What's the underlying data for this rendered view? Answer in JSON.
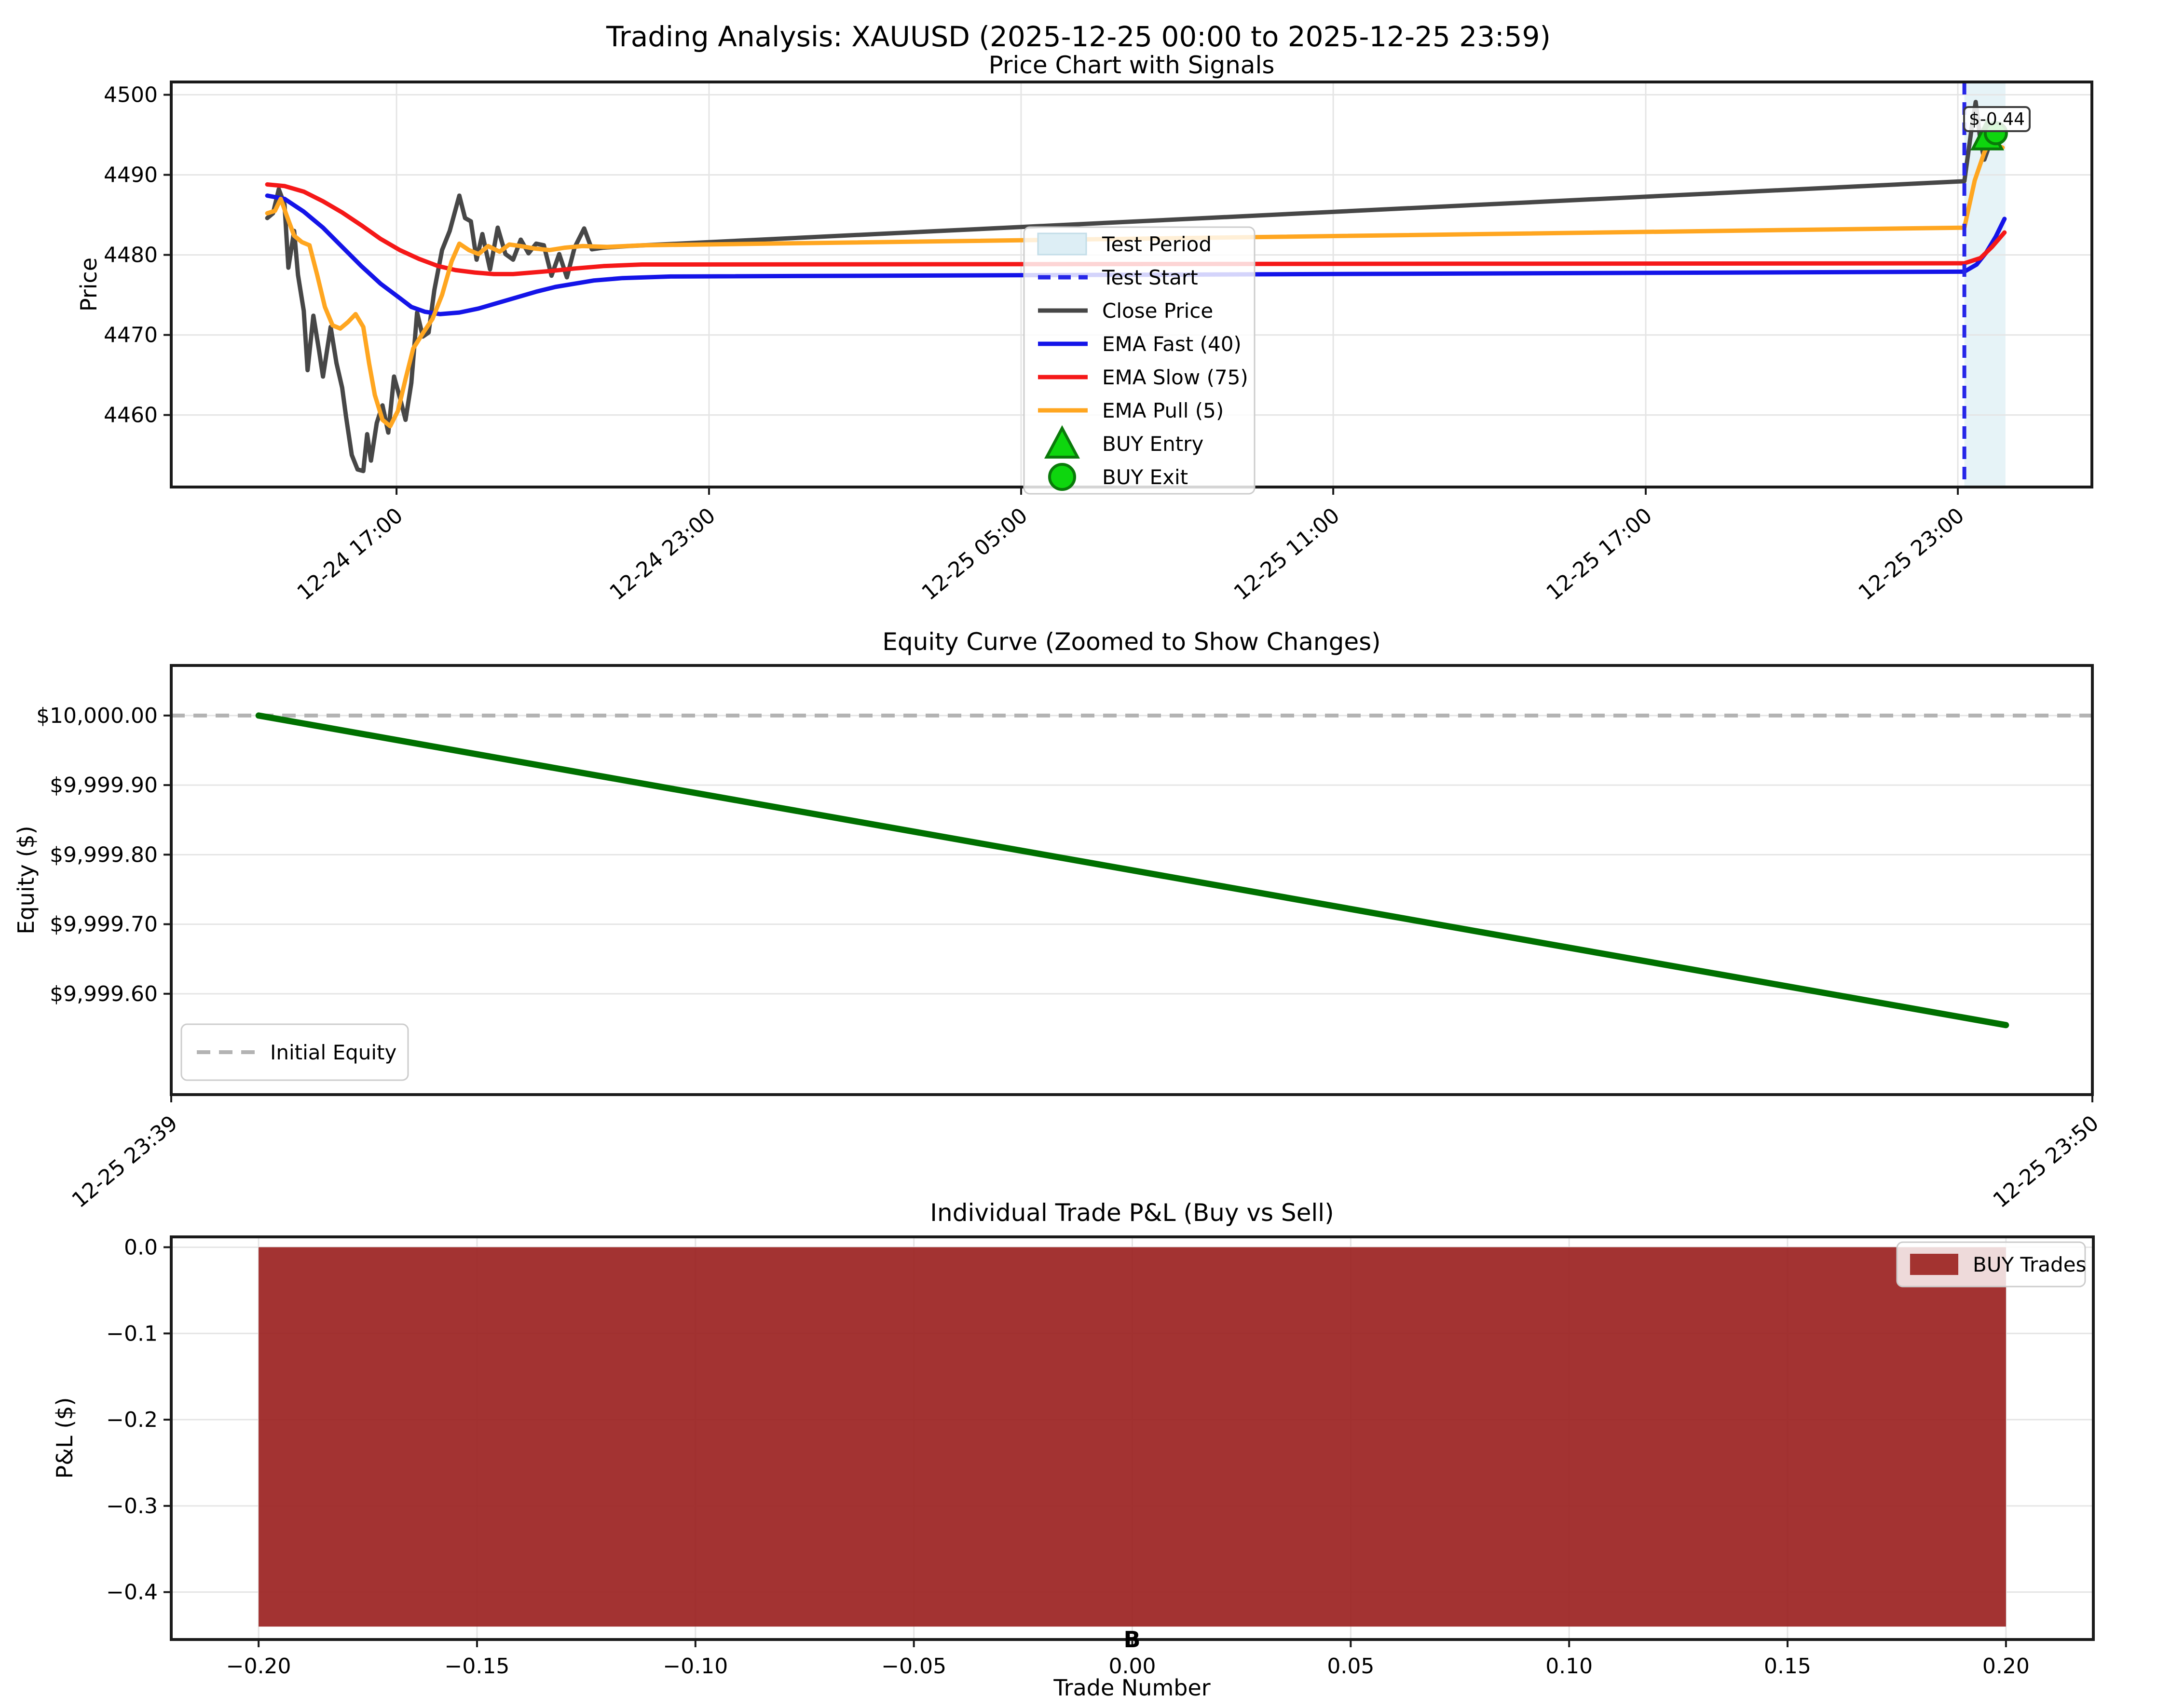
{
  "figure_title": "Trading Analysis: XAUUSD (2025-12-25 00:00 to 2025-12-25 23:59)",
  "chart_data": [
    {
      "id": "price",
      "type": "line",
      "title": "Price Chart with Signals",
      "ylabel": "Price",
      "xlim": [
        0,
        100
      ],
      "ylim": [
        4451.0,
        4501.6
      ],
      "grid": true,
      "yticks": [
        {
          "v": 4460,
          "label": "4460"
        },
        {
          "v": 4470,
          "label": "4470"
        },
        {
          "v": 4480,
          "label": "4480"
        },
        {
          "v": 4490,
          "label": "4490"
        },
        {
          "v": 4500,
          "label": "4500"
        }
      ],
      "xticks": [
        {
          "v": 11.73,
          "label": "12-24 17:00"
        },
        {
          "v": 28.0,
          "label": "12-24 23:00"
        },
        {
          "v": 44.25,
          "label": "12-25 05:00"
        },
        {
          "v": 60.5,
          "label": "12-25 11:00"
        },
        {
          "v": 76.77,
          "label": "12-25 17:00"
        },
        {
          "v": 93.02,
          "label": "12-25 23:00"
        }
      ],
      "test_period": {
        "label": "Test Period",
        "x0": 93.36,
        "x1": 95.5,
        "color": "rgba(173,216,230,0.30)"
      },
      "test_start": {
        "label": "Test Start",
        "x": 93.36,
        "color": "#2626e8"
      },
      "series": [
        {
          "name": "Close Price",
          "color": "#474747",
          "width": 9,
          "points": [
            [
              5.0,
              4484.6
            ],
            [
              5.3,
              4485.2
            ],
            [
              5.6,
              4488.2
            ],
            [
              5.9,
              4486.3
            ],
            [
              6.1,
              4478.4
            ],
            [
              6.4,
              4483.0
            ],
            [
              6.6,
              4477.5
            ],
            [
              6.9,
              4473.0
            ],
            [
              7.1,
              4465.6
            ],
            [
              7.4,
              4472.4
            ],
            [
              7.7,
              4468.0
            ],
            [
              7.9,
              4464.8
            ],
            [
              8.3,
              4471.0
            ],
            [
              8.6,
              4466.5
            ],
            [
              8.9,
              4463.4
            ],
            [
              9.1,
              4459.8
            ],
            [
              9.4,
              4455.0
            ],
            [
              9.7,
              4453.2
            ],
            [
              10.0,
              4453.0
            ],
            [
              10.2,
              4457.6
            ],
            [
              10.4,
              4454.3
            ],
            [
              10.7,
              4459.0
            ],
            [
              11.0,
              4461.2
            ],
            [
              11.3,
              4457.8
            ],
            [
              11.6,
              4464.8
            ],
            [
              11.9,
              4462.2
            ],
            [
              12.2,
              4459.4
            ],
            [
              12.5,
              4464.0
            ],
            [
              12.8,
              4472.8
            ],
            [
              13.1,
              4469.8
            ],
            [
              13.4,
              4470.3
            ],
            [
              13.7,
              4475.6
            ],
            [
              14.1,
              4480.6
            ],
            [
              14.5,
              4483.0
            ],
            [
              15.0,
              4487.4
            ],
            [
              15.3,
              4484.6
            ],
            [
              15.6,
              4484.2
            ],
            [
              15.9,
              4479.4
            ],
            [
              16.2,
              4482.6
            ],
            [
              16.6,
              4478.2
            ],
            [
              17.0,
              4483.4
            ],
            [
              17.4,
              4480.1
            ],
            [
              17.8,
              4479.4
            ],
            [
              18.2,
              4481.9
            ],
            [
              18.6,
              4480.2
            ],
            [
              19.0,
              4481.4
            ],
            [
              19.4,
              4481.2
            ],
            [
              19.8,
              4477.4
            ],
            [
              20.2,
              4480.1
            ],
            [
              20.6,
              4477.2
            ],
            [
              21.0,
              4480.9
            ],
            [
              21.5,
              4483.3
            ],
            [
              21.9,
              4480.7
            ],
            [
              22.5,
              4480.9
            ],
            [
              23.1,
              4481.0
            ],
            [
              23.8,
              4481.1
            ],
            [
              93.36,
              4489.2
            ],
            [
              93.75,
              4496.0
            ],
            [
              93.95,
              4499.1
            ],
            [
              94.2,
              4494.2
            ],
            [
              94.4,
              4491.9
            ],
            [
              94.65,
              4493.6
            ],
            [
              95.0,
              4495.2
            ]
          ]
        },
        {
          "name": "EMA Fast (40)",
          "color": "#1414e8",
          "width": 9,
          "points": [
            [
              5.0,
              4487.4
            ],
            [
              5.9,
              4487.0
            ],
            [
              6.9,
              4485.4
            ],
            [
              7.9,
              4483.4
            ],
            [
              8.9,
              4481.0
            ],
            [
              9.9,
              4478.6
            ],
            [
              10.9,
              4476.4
            ],
            [
              11.9,
              4474.6
            ],
            [
              12.5,
              4473.5
            ],
            [
              13.2,
              4472.9
            ],
            [
              14.0,
              4472.6
            ],
            [
              15.0,
              4472.8
            ],
            [
              16.0,
              4473.3
            ],
            [
              17.0,
              4474.0
            ],
            [
              18.0,
              4474.7
            ],
            [
              19.0,
              4475.4
            ],
            [
              20.0,
              4476.0
            ],
            [
              21.0,
              4476.4
            ],
            [
              22.0,
              4476.8
            ],
            [
              23.5,
              4477.1
            ],
            [
              26.0,
              4477.3
            ],
            [
              93.36,
              4477.9
            ],
            [
              94.0,
              4478.8
            ],
            [
              94.5,
              4480.3
            ],
            [
              95.0,
              4482.3
            ],
            [
              95.45,
              4484.5
            ]
          ]
        },
        {
          "name": "EMA Slow (75)",
          "color": "#f51818",
          "width": 9,
          "points": [
            [
              5.0,
              4488.8
            ],
            [
              5.9,
              4488.6
            ],
            [
              6.9,
              4487.9
            ],
            [
              7.9,
              4486.7
            ],
            [
              8.9,
              4485.3
            ],
            [
              9.9,
              4483.7
            ],
            [
              10.9,
              4482.0
            ],
            [
              11.9,
              4480.6
            ],
            [
              12.9,
              4479.5
            ],
            [
              13.9,
              4478.6
            ],
            [
              14.8,
              4478.1
            ],
            [
              15.8,
              4477.8
            ],
            [
              16.8,
              4477.6
            ],
            [
              17.8,
              4477.6
            ],
            [
              18.8,
              4477.8
            ],
            [
              19.8,
              4478.0
            ],
            [
              21.0,
              4478.3
            ],
            [
              22.5,
              4478.6
            ],
            [
              24.5,
              4478.8
            ],
            [
              93.36,
              4478.95
            ],
            [
              94.2,
              4479.6
            ],
            [
              94.8,
              4481.0
            ],
            [
              95.45,
              4482.8
            ]
          ]
        },
        {
          "name": "EMA Pull (5)",
          "color": "#ffa620",
          "width": 9,
          "points": [
            [
              5.0,
              4485.2
            ],
            [
              5.4,
              4485.5
            ],
            [
              5.7,
              4487.0
            ],
            [
              6.0,
              4485.0
            ],
            [
              6.4,
              4482.4
            ],
            [
              6.8,
              4481.6
            ],
            [
              7.2,
              4481.2
            ],
            [
              7.6,
              4477.5
            ],
            [
              8.0,
              4473.5
            ],
            [
              8.4,
              4471.2
            ],
            [
              8.8,
              4470.8
            ],
            [
              9.2,
              4471.6
            ],
            [
              9.6,
              4472.6
            ],
            [
              10.0,
              4471.0
            ],
            [
              10.3,
              4466.5
            ],
            [
              10.6,
              4462.5
            ],
            [
              11.0,
              4459.4
            ],
            [
              11.4,
              4458.6
            ],
            [
              11.8,
              4460.5
            ],
            [
              12.2,
              4464.5
            ],
            [
              12.6,
              4468.3
            ],
            [
              13.1,
              4470.2
            ],
            [
              13.6,
              4472.0
            ],
            [
              14.1,
              4475.0
            ],
            [
              14.6,
              4479.2
            ],
            [
              15.0,
              4481.4
            ],
            [
              15.5,
              4480.6
            ],
            [
              16.0,
              4480.1
            ],
            [
              16.5,
              4481.1
            ],
            [
              17.1,
              4480.4
            ],
            [
              17.6,
              4481.3
            ],
            [
              18.2,
              4481.1
            ],
            [
              18.9,
              4480.8
            ],
            [
              19.7,
              4480.6
            ],
            [
              20.5,
              4480.9
            ],
            [
              21.4,
              4481.1
            ],
            [
              22.7,
              4481.0
            ],
            [
              24.5,
              4481.2
            ],
            [
              93.36,
              4483.4
            ],
            [
              93.9,
              4489.3
            ],
            [
              94.4,
              4492.8
            ],
            [
              94.7,
              4494.3
            ],
            [
              94.9,
              4493.8
            ],
            [
              95.35,
              4493.4
            ]
          ]
        }
      ],
      "markers": [
        {
          "name": "BUY Entry",
          "shape": "triangle",
          "x": 94.55,
          "v": 4494.8,
          "fill": "#0ed60e",
          "edge": "#0a7a0a"
        },
        {
          "name": "BUY Exit",
          "shape": "circle",
          "x": 95.0,
          "v": 4495.2,
          "fill": "#0ed60e",
          "edge": "#0a7a0a"
        }
      ],
      "annotation": {
        "text": "$-0.44",
        "x": 94.35,
        "v": 4497.5
      },
      "legend": [
        "Test Period",
        "Test Start",
        "Close Price",
        "EMA Fast (40)",
        "EMA Slow (75)",
        "EMA Pull (5)",
        "BUY Entry",
        "BUY Exit"
      ]
    },
    {
      "id": "equity",
      "type": "line",
      "title": "Equity Curve (Zoomed to Show Changes)",
      "ylabel": "Equity ($)",
      "xlim": [
        0,
        100
      ],
      "ylim": [
        9999.455,
        10000.072
      ],
      "grid": true,
      "yticks": [
        {
          "v": 10000.0,
          "label": "$10,000.00"
        },
        {
          "v": 9999.9,
          "label": "$9,999.90"
        },
        {
          "v": 9999.8,
          "label": "$9,999.80"
        },
        {
          "v": 9999.7,
          "label": "$9,999.70"
        },
        {
          "v": 9999.6,
          "label": "$9,999.60"
        }
      ],
      "xticks": [
        {
          "v": 0,
          "label": "12-25 23:39"
        },
        {
          "v": 100,
          "label": "12-25 23:50"
        }
      ],
      "initial_equity": {
        "label": "Initial Equity",
        "v": 10000,
        "color": "#b3b3b3"
      },
      "series": [
        {
          "name": "Equity",
          "color": "#007000",
          "width": 13,
          "points": [
            [
              4.55,
              10000.0
            ],
            [
              95.5,
              9999.555
            ]
          ]
        }
      ]
    },
    {
      "id": "pnl",
      "type": "bar",
      "title": "Individual Trade P&L (Buy vs Sell)",
      "ylabel": "P&L ($)",
      "xlabel": "Trade Number",
      "xlim": [
        -0.22,
        0.22
      ],
      "ylim": [
        -0.455,
        0.012
      ],
      "grid": true,
      "yticks": [
        {
          "v": 0.0,
          "label": "0.0"
        },
        {
          "v": -0.1,
          "label": "−0.1"
        },
        {
          "v": -0.2,
          "label": "−0.2"
        },
        {
          "v": -0.3,
          "label": "−0.3"
        },
        {
          "v": -0.4,
          "label": "−0.4"
        }
      ],
      "xticks": [
        {
          "v": -0.2,
          "label": "−0.20"
        },
        {
          "v": -0.15,
          "label": "−0.15"
        },
        {
          "v": -0.1,
          "label": "−0.10"
        },
        {
          "v": -0.05,
          "label": "−0.05"
        },
        {
          "v": 0.0,
          "label": "0.00"
        },
        {
          "v": 0.05,
          "label": "0.05"
        },
        {
          "v": 0.1,
          "label": "0.10"
        },
        {
          "v": 0.15,
          "label": "0.15"
        },
        {
          "v": 0.2,
          "label": "0.20"
        }
      ],
      "bars": [
        {
          "x": 0,
          "width": 0.4,
          "value": -0.44,
          "color": "#9c2422",
          "label": "B"
        }
      ],
      "legend": [
        "BUY Trades"
      ],
      "legend_swatch_color": "#a33330"
    }
  ]
}
